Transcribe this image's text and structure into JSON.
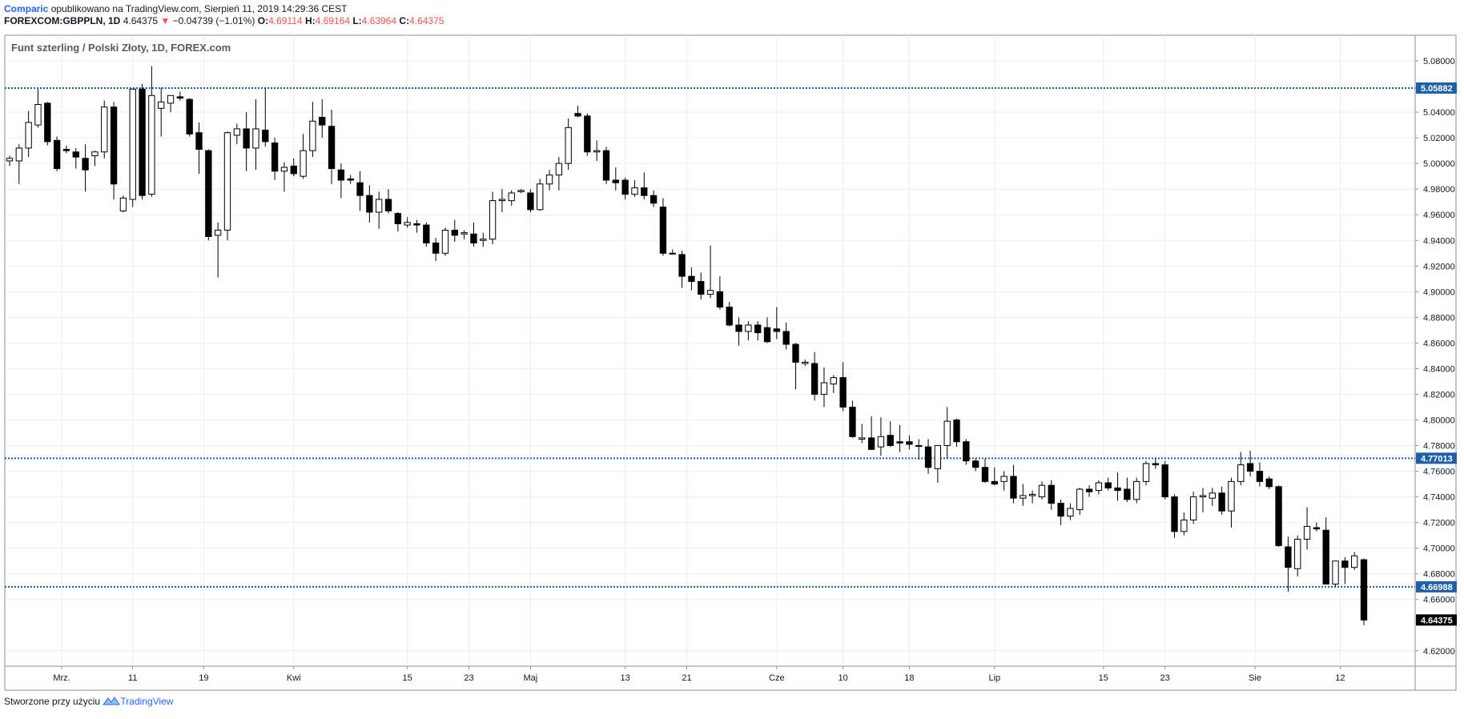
{
  "header": {
    "author": "Comparic",
    "published_text": "opublikowano na TradingView.com, Sierpień 11, 2019 14:29:36 CEST",
    "symbol": "FOREXCOM:GBPPLN, 1D",
    "last": "4.64375",
    "change": "−0.04739 (−1.01%)",
    "o_label": "O:",
    "o_value": "4.69114",
    "h_label": "H:",
    "h_value": "4.69164",
    "l_label": "L:",
    "l_value": "4.63964",
    "c_label": "C:",
    "c_value": "4.64375"
  },
  "chart_data": {
    "type": "candlestick",
    "title": "Funt szterling / Polski Złoty, 1D, FOREX.com",
    "ylim": [
      4.608,
      5.1
    ],
    "yticks": [
      "5.08000",
      "5.04000",
      "5.02000",
      "5.00000",
      "4.98000",
      "4.96000",
      "4.94000",
      "4.92000",
      "4.90000",
      "4.88000",
      "4.86000",
      "4.84000",
      "4.82000",
      "4.80000",
      "4.78000",
      "4.76000",
      "4.74000",
      "4.72000",
      "4.70000",
      "4.68000",
      "4.66000",
      "4.62000"
    ],
    "xticks": [
      "Mrz.",
      "11",
      "19",
      "Kwi",
      "15",
      "23",
      "Maj",
      "13",
      "21",
      "Cze",
      "10",
      "18",
      "Lip",
      "15",
      "23",
      "Sie",
      "12"
    ],
    "horizontal_lines": [
      {
        "value": 5.05882,
        "label": "5.05882"
      },
      {
        "value": 4.77013,
        "label": "4.77013"
      },
      {
        "value": 4.66988,
        "label": "4.66988"
      }
    ],
    "last_price_label": "4.64375",
    "colors": {
      "up": "#ffffff",
      "down": "#000000",
      "wick": "#000000",
      "hline": "#1f5fa8",
      "badge": "#1f5fa8",
      "grid": "#e9eef3"
    },
    "grid": true,
    "candles_ohlc": [
      [
        5.002,
        5.006,
        4.998,
        5.004
      ],
      [
        5.002,
        5.015,
        4.984,
        5.012
      ],
      [
        5.012,
        5.041,
        5.005,
        5.032
      ],
      [
        5.03,
        5.058,
        5.028,
        5.046
      ],
      [
        5.047,
        5.048,
        5.014,
        5.017
      ],
      [
        5.018,
        5.021,
        4.994,
        4.996
      ],
      [
        5.011,
        5.014,
        5.008,
        5.01
      ],
      [
        5.009,
        5.012,
        4.996,
        5.005
      ],
      [
        5.004,
        5.015,
        4.978,
        4.995
      ],
      [
        5.006,
        5.01,
        4.998,
        5.009
      ],
      [
        5.009,
        5.049,
        5.004,
        5.044
      ],
      [
        5.044,
        5.048,
        4.972,
        4.984
      ],
      [
        4.963,
        4.975,
        4.962,
        4.973
      ],
      [
        4.972,
        5.058,
        4.966,
        5.058
      ],
      [
        5.058,
        5.062,
        4.972,
        4.975
      ],
      [
        4.976,
        5.076,
        4.974,
        5.053
      ],
      [
        5.043,
        5.059,
        5.021,
        5.048
      ],
      [
        5.047,
        5.052,
        5.04,
        5.053
      ],
      [
        5.052,
        5.056,
        5.049,
        5.051
      ],
      [
        5.05,
        5.051,
        5.021,
        5.023
      ],
      [
        5.024,
        5.032,
        4.992,
        5.011
      ],
      [
        5.01,
        5.011,
        4.94,
        4.943
      ],
      [
        4.944,
        4.954,
        4.911,
        4.948
      ],
      [
        4.948,
        5.025,
        4.94,
        5.024
      ],
      [
        5.022,
        5.031,
        5.015,
        5.027
      ],
      [
        5.027,
        5.04,
        4.994,
        5.012
      ],
      [
        5.012,
        5.05,
        4.995,
        5.027
      ],
      [
        5.026,
        5.059,
        5.013,
        5.017
      ],
      [
        5.016,
        5.02,
        4.987,
        4.994
      ],
      [
        4.994,
        5.001,
        4.978,
        4.997
      ],
      [
        4.998,
        5.004,
        4.99,
        4.992
      ],
      [
        4.99,
        5.023,
        4.988,
        5.01
      ],
      [
        5.01,
        5.048,
        5.005,
        5.033
      ],
      [
        5.036,
        5.05,
        5.02,
        5.03
      ],
      [
        5.029,
        5.042,
        4.984,
        4.996
      ],
      [
        4.995,
        5.0,
        4.973,
        4.987
      ],
      [
        4.988,
        4.991,
        4.984,
        4.987
      ],
      [
        4.985,
        4.994,
        4.963,
        4.975
      ],
      [
        4.975,
        4.983,
        4.954,
        4.962
      ],
      [
        4.962,
        4.978,
        4.949,
        4.972
      ],
      [
        4.972,
        4.98,
        4.961,
        4.963
      ],
      [
        4.961,
        4.962,
        4.947,
        4.953
      ],
      [
        4.952,
        4.958,
        4.95,
        4.954
      ],
      [
        4.953,
        4.956,
        4.946,
        4.952
      ],
      [
        4.952,
        4.954,
        4.935,
        4.938
      ],
      [
        4.938,
        4.942,
        4.924,
        4.93
      ],
      [
        4.93,
        4.95,
        4.928,
        4.948
      ],
      [
        4.948,
        4.956,
        4.939,
        4.944
      ],
      [
        4.945,
        4.948,
        4.941,
        4.946
      ],
      [
        4.945,
        4.954,
        4.935,
        4.938
      ],
      [
        4.94,
        4.946,
        4.935,
        4.941
      ],
      [
        4.941,
        4.978,
        4.937,
        4.971
      ],
      [
        4.971,
        4.98,
        4.962,
        4.972
      ],
      [
        4.971,
        4.979,
        4.967,
        4.977
      ],
      [
        4.978,
        4.98,
        4.977,
        4.979
      ],
      [
        4.977,
        4.98,
        4.962,
        4.964
      ],
      [
        4.964,
        4.988,
        4.963,
        4.984
      ],
      [
        4.984,
        4.995,
        4.979,
        4.991
      ],
      [
        4.991,
        5.005,
        4.979,
        5.0
      ],
      [
        5.0,
        5.035,
        4.995,
        5.028
      ],
      [
        5.039,
        5.045,
        5.036,
        5.037
      ],
      [
        5.037,
        5.039,
        5.006,
        5.009
      ],
      [
        5.009,
        5.018,
        5.002,
        5.01
      ],
      [
        5.01,
        5.013,
        4.984,
        4.987
      ],
      [
        4.987,
        4.997,
        4.979,
        4.985
      ],
      [
        4.987,
        4.989,
        4.972,
        4.976
      ],
      [
        4.976,
        4.987,
        4.974,
        4.981
      ],
      [
        4.981,
        4.993,
        4.972,
        4.975
      ],
      [
        4.975,
        4.979,
        4.966,
        4.969
      ],
      [
        4.966,
        4.973,
        4.928,
        4.93
      ],
      [
        4.93,
        4.933,
        4.929,
        4.93
      ],
      [
        4.929,
        4.932,
        4.903,
        4.912
      ],
      [
        4.912,
        4.919,
        4.901,
        4.908
      ],
      [
        4.908,
        4.915,
        4.894,
        4.898
      ],
      [
        4.898,
        4.936,
        4.895,
        4.901
      ],
      [
        4.9,
        4.912,
        4.886,
        4.888
      ],
      [
        4.888,
        4.892,
        4.873,
        4.874
      ],
      [
        4.874,
        4.88,
        4.858,
        4.869
      ],
      [
        4.869,
        4.877,
        4.862,
        4.874
      ],
      [
        4.874,
        4.877,
        4.862,
        4.868
      ],
      [
        4.872,
        4.88,
        4.86,
        4.861
      ],
      [
        4.871,
        4.888,
        4.863,
        4.869
      ],
      [
        4.869,
        4.876,
        4.855,
        4.859
      ],
      [
        4.859,
        4.86,
        4.824,
        4.845
      ],
      [
        4.844,
        4.847,
        4.842,
        4.845
      ],
      [
        4.844,
        4.853,
        4.815,
        4.82
      ],
      [
        4.82,
        4.841,
        4.81,
        4.829
      ],
      [
        4.828,
        4.835,
        4.821,
        4.833
      ],
      [
        4.833,
        4.845,
        4.807,
        4.81
      ],
      [
        4.81,
        4.815,
        4.786,
        4.787
      ],
      [
        4.785,
        4.797,
        4.782,
        4.786
      ],
      [
        4.786,
        4.803,
        4.777,
        4.777
      ],
      [
        4.779,
        4.802,
        4.772,
        4.787
      ],
      [
        4.788,
        4.799,
        4.779,
        4.78
      ],
      [
        4.783,
        4.796,
        4.775,
        4.782
      ],
      [
        4.783,
        4.788,
        4.777,
        4.781
      ],
      [
        4.78,
        4.785,
        4.769,
        4.78
      ],
      [
        4.779,
        4.785,
        4.758,
        4.763
      ],
      [
        4.762,
        4.779,
        4.751,
        4.78
      ],
      [
        4.78,
        4.81,
        4.77,
        4.799
      ],
      [
        4.8,
        4.801,
        4.779,
        4.783
      ],
      [
        4.783,
        4.785,
        4.765,
        4.768
      ],
      [
        4.768,
        4.77,
        4.76,
        4.763
      ],
      [
        4.763,
        4.77,
        4.751,
        4.752
      ],
      [
        4.752,
        4.763,
        4.749,
        4.75
      ],
      [
        4.752,
        4.76,
        4.745,
        4.756
      ],
      [
        4.756,
        4.765,
        4.735,
        4.739
      ],
      [
        4.739,
        4.75,
        4.733,
        4.741
      ],
      [
        4.741,
        4.745,
        4.735,
        4.742
      ],
      [
        4.74,
        4.752,
        4.738,
        4.749
      ],
      [
        4.749,
        4.753,
        4.73,
        4.735
      ],
      [
        4.735,
        4.738,
        4.718,
        4.725
      ],
      [
        4.725,
        4.735,
        4.722,
        4.731
      ],
      [
        4.73,
        4.747,
        4.726,
        4.746
      ],
      [
        4.746,
        4.749,
        4.74,
        4.744
      ],
      [
        4.745,
        4.753,
        4.742,
        4.751
      ],
      [
        4.751,
        4.755,
        4.745,
        4.747
      ],
      [
        4.747,
        4.759,
        4.737,
        4.745
      ],
      [
        4.746,
        4.755,
        4.736,
        4.738
      ],
      [
        4.738,
        4.755,
        4.735,
        4.752
      ],
      [
        4.752,
        4.768,
        4.749,
        4.766
      ],
      [
        4.766,
        4.77,
        4.762,
        4.765
      ],
      [
        4.765,
        4.768,
        4.738,
        4.74
      ],
      [
        4.74,
        4.742,
        4.708,
        4.713
      ],
      [
        4.713,
        4.728,
        4.71,
        4.722
      ],
      [
        4.722,
        4.744,
        4.719,
        4.74
      ],
      [
        4.74,
        4.747,
        4.728,
        4.741
      ],
      [
        4.739,
        4.747,
        4.733,
        4.743
      ],
      [
        4.743,
        4.748,
        4.726,
        4.729
      ],
      [
        4.729,
        4.755,
        4.716,
        4.752
      ],
      [
        4.752,
        4.775,
        4.749,
        4.765
      ],
      [
        4.766,
        4.776,
        4.756,
        4.76
      ],
      [
        4.76,
        4.767,
        4.748,
        4.752
      ],
      [
        4.754,
        4.756,
        4.746,
        4.748
      ],
      [
        4.748,
        4.749,
        4.701,
        4.702
      ],
      [
        4.701,
        4.709,
        4.666,
        4.685
      ],
      [
        4.684,
        4.71,
        4.678,
        4.707
      ],
      [
        4.707,
        4.732,
        4.699,
        4.717
      ],
      [
        4.716,
        4.72,
        4.713,
        4.715
      ],
      [
        4.714,
        4.724,
        4.69,
        4.672
      ],
      [
        4.672,
        4.69,
        4.67,
        4.69
      ],
      [
        4.69,
        4.693,
        4.672,
        4.685
      ],
      [
        4.685,
        4.697,
        4.683,
        4.694
      ],
      [
        4.691,
        4.692,
        4.64,
        4.644
      ]
    ]
  },
  "footer": {
    "text": "Stworzone przy użyciu",
    "brand": "TradingView"
  }
}
